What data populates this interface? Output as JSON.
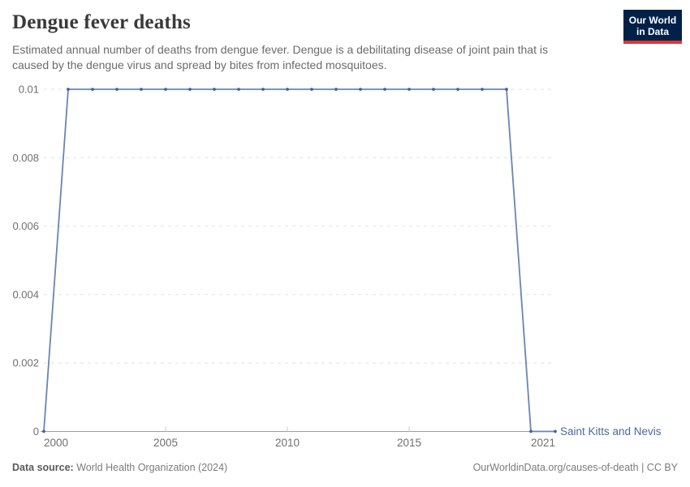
{
  "header": {
    "title": "Dengue fever deaths",
    "subtitle_line1": "Estimated annual number of deaths from dengue fever. Dengue is a debilitating disease of joint pain that is",
    "subtitle_line2": "caused by the dengue virus and spread by bites from infected mosquitoes.",
    "logo": {
      "line1": "Our World",
      "line2": "in Data"
    }
  },
  "chart_data": {
    "type": "line",
    "title": "Dengue fever deaths",
    "xlim": [
      2000,
      2021
    ],
    "ylim": [
      0,
      0.01
    ],
    "grid": "horizontal-dashed",
    "legend": "end-of-line-label",
    "series": [
      {
        "name": "Saint Kitts and Nevis",
        "x": [
          2000,
          2001,
          2002,
          2003,
          2004,
          2005,
          2006,
          2007,
          2008,
          2009,
          2010,
          2011,
          2012,
          2013,
          2014,
          2015,
          2016,
          2017,
          2018,
          2019,
          2020,
          2021
        ],
        "values": [
          0,
          0.01,
          0.01,
          0.01,
          0.01,
          0.01,
          0.01,
          0.01,
          0.01,
          0.01,
          0.01,
          0.01,
          0.01,
          0.01,
          0.01,
          0.01,
          0.01,
          0.01,
          0.01,
          0.01,
          0,
          0
        ]
      }
    ],
    "y_ticks": [
      {
        "value": 0,
        "label": "0"
      },
      {
        "value": 0.002,
        "label": "0.002"
      },
      {
        "value": 0.004,
        "label": "0.004"
      },
      {
        "value": 0.006,
        "label": "0.006"
      },
      {
        "value": 0.008,
        "label": "0.008"
      },
      {
        "value": 0.01,
        "label": "0.01"
      }
    ],
    "x_ticks": [
      {
        "year": 2000,
        "label": "2000",
        "align": "start",
        "tick": false
      },
      {
        "year": 2005,
        "label": "2005",
        "align": "middle",
        "tick": true
      },
      {
        "year": 2010,
        "label": "2010",
        "align": "middle",
        "tick": true
      },
      {
        "year": 2015,
        "label": "2015",
        "align": "middle",
        "tick": true
      },
      {
        "year": 2021,
        "label": "2021",
        "align": "end",
        "tick": false
      }
    ],
    "colors": {
      "line": "#6a84b5",
      "marker": "#47629d",
      "entity_label": "#4C6A9C",
      "grid": "#e2e2e2",
      "axis": "#9e9e9e",
      "tick_mark": "#cccccc",
      "tick_text": "#6f6f6f",
      "logo_bg": "#002147",
      "logo_accent": "#d73a32"
    }
  },
  "footer": {
    "datasource_label": "Data source:",
    "datasource_value": "World Health Organization (2024)",
    "attribution": "OurWorldinData.org/causes-of-death | CC BY"
  }
}
